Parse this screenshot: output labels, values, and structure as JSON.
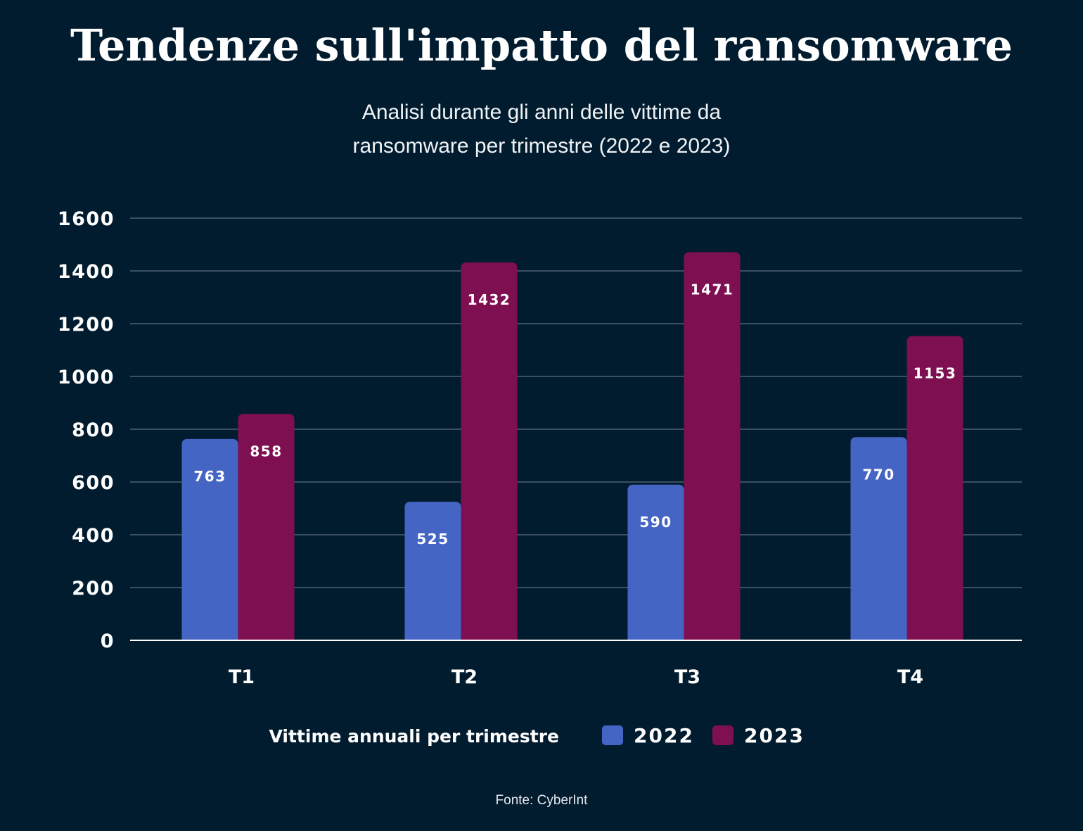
{
  "chart_data": {
    "type": "bar",
    "title": "Tendenze sull'impatto del ransomware",
    "subtitle_lines": [
      "Analisi durante gli anni delle vittime da",
      "ransomware per trimestre (2022 e 2023)"
    ],
    "categories": [
      "T1",
      "T2",
      "T3",
      "T4"
    ],
    "series": [
      {
        "name": "2022",
        "values": [
          763,
          525,
          590,
          770
        ],
        "color": "#4565c4"
      },
      {
        "name": "2023",
        "values": [
          858,
          1432,
          1471,
          1153
        ],
        "color": "#7e0f50"
      }
    ],
    "ylim": [
      0,
      1600
    ],
    "yticks": [
      "0",
      "200",
      "400",
      "600",
      "800",
      "1000",
      "1200",
      "1400",
      "1600"
    ],
    "grid": true,
    "legend_title": "Vittime annuali per trimestre",
    "legend_placement": "bottom",
    "data_labels": true,
    "source": "Fonte: CyberInt"
  },
  "colors": {
    "background": "#021c2f",
    "grid": "#3a5060"
  }
}
